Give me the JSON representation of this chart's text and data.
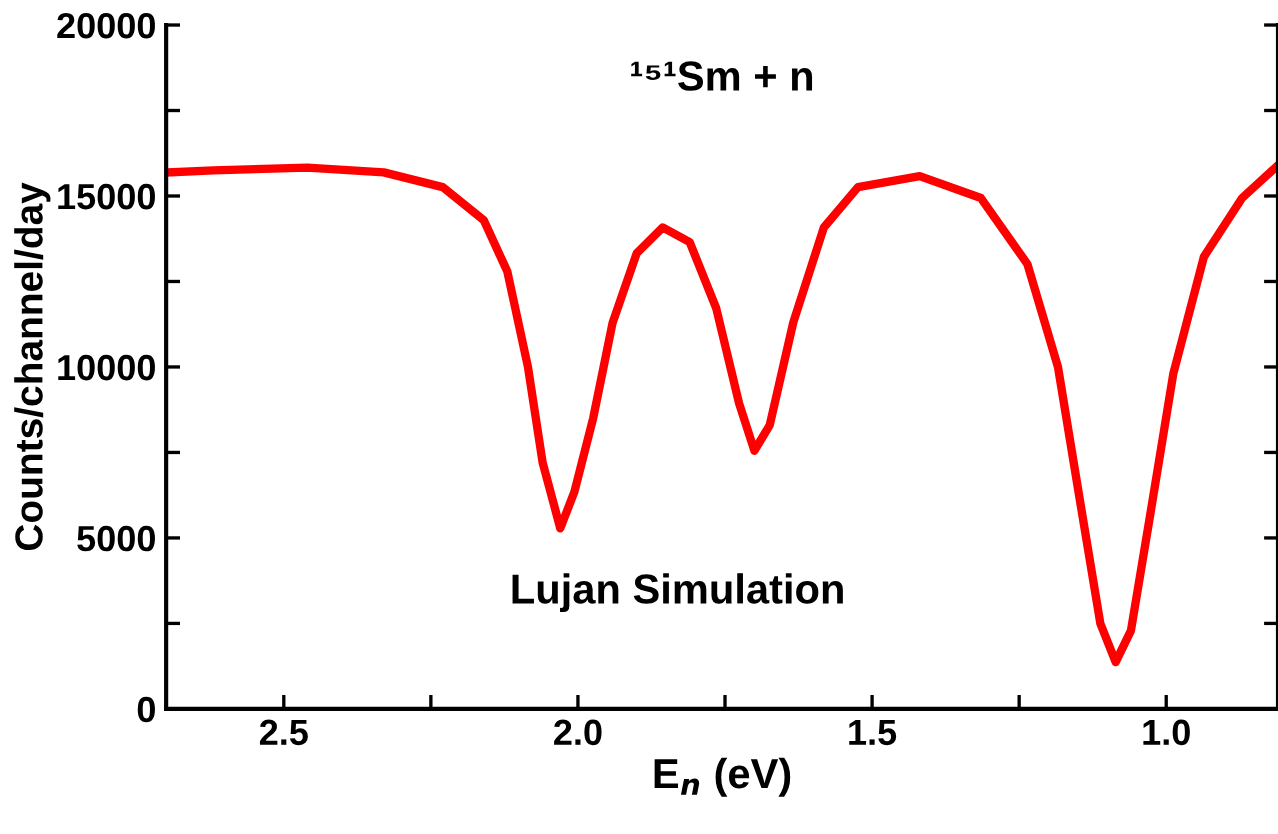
{
  "chart_data": {
    "type": "line",
    "title": "¹⁵¹Sm + n",
    "xlabel": "E$_{n}$ (eV)",
    "ylabel": "Counts/channel/day",
    "annotations": [
      "Lujan Simulation"
    ],
    "x": [
      2.698,
      2.62,
      2.46,
      2.33,
      2.23,
      2.16,
      2.12,
      2.085,
      2.06,
      2.03,
      2.006,
      1.974,
      1.941,
      1.9,
      1.856,
      1.81,
      1.765,
      1.726,
      1.7,
      1.674,
      1.634,
      1.582,
      1.524,
      1.419,
      1.315,
      1.236,
      1.184,
      1.145,
      1.112,
      1.086,
      1.06,
      1.027,
      0.988,
      0.936,
      0.871,
      0.81
    ],
    "series": [
      {
        "color": "#ff0000",
        "values": [
          15690,
          15750,
          15830,
          15690,
          15260,
          14290,
          12790,
          10000,
          7200,
          5280,
          6350,
          8510,
          11300,
          13330,
          14080,
          13650,
          11720,
          8930,
          7550,
          8300,
          11300,
          14080,
          15260,
          15580,
          14940,
          13010,
          10000,
          5920,
          2500,
          1370,
          2290,
          5700,
          9800,
          13220,
          14940,
          15900
        ]
      }
    ],
    "xlim": [
      2.7,
      0.81
    ],
    "xticks": [
      2.5,
      {
        "value": 2.25,
        "label": null
      },
      {
        "value": 2.0,
        "label": "2.0"
      },
      {
        "value": 1.75,
        "label": null
      },
      1.5,
      {
        "value": 1.25,
        "label": null
      },
      {
        "value": 1.0,
        "label": "1.0"
      }
    ],
    "ylim": [
      0,
      20000
    ],
    "yticks": [
      0,
      {
        "value": 2500,
        "label": null
      },
      5000,
      {
        "value": 7500,
        "label": null
      },
      10000,
      {
        "value": 12500,
        "label": null
      },
      15000,
      {
        "value": 17500,
        "label": null
      },
      20000
    ],
    "grid": false,
    "legend": false,
    "marker": "none",
    "line_style": "solid"
  }
}
